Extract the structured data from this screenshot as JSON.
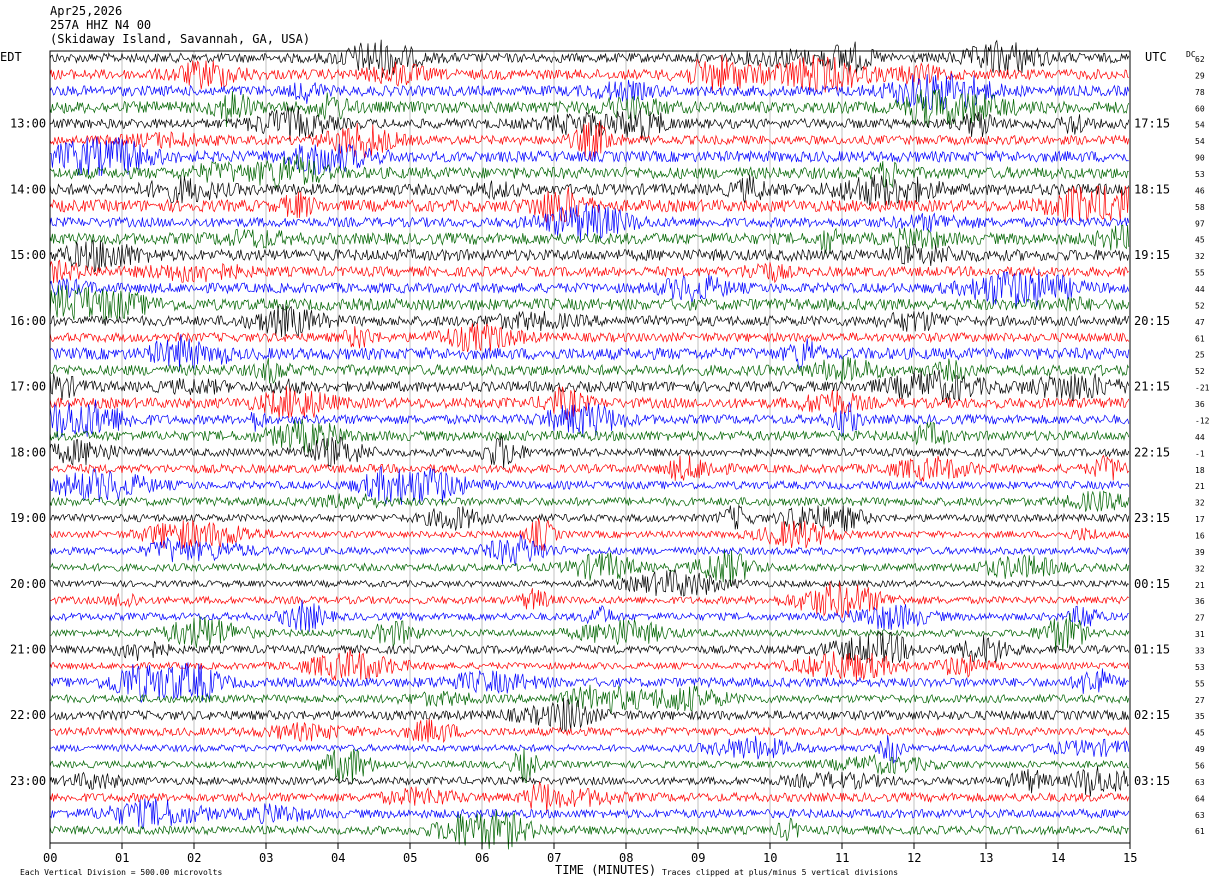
{
  "header": {
    "date": "Apr25,2026",
    "station": "257A HHZ N4 00",
    "location": "(Skidaway Island, Savannah, GA, USA)"
  },
  "left_timezone": "EDT",
  "right_timezone": "UTC",
  "dc_label": "DC",
  "footer": {
    "scale_note": "Each Vertical Division =  500.00 microvolts",
    "clip_note": "Traces clipped at plus/minus 5 vertical divisions"
  },
  "colors": [
    "#000000",
    "#ff0000",
    "#0000ff",
    "#006400"
  ],
  "chart_data": {
    "type": "line",
    "title": "",
    "xlabel": "TIME (MINUTES)",
    "x_ticks": [
      "00",
      "01",
      "02",
      "03",
      "04",
      "05",
      "06",
      "07",
      "08",
      "09",
      "10",
      "11",
      "12",
      "13",
      "14",
      "15"
    ],
    "xlim": [
      0,
      15
    ],
    "rows_per_hour": 4,
    "row_minutes": 15,
    "left_hour_labels": [
      "13:00",
      "14:00",
      "15:00",
      "16:00",
      "17:00",
      "18:00",
      "19:00",
      "20:00",
      "21:00",
      "22:00",
      "23:00"
    ],
    "right_hour_labels": [
      "17:15",
      "18:15",
      "19:15",
      "20:15",
      "21:15",
      "22:15",
      "23:15",
      "00:15",
      "01:15",
      "02:15",
      "03:15"
    ],
    "dc_offsets": [
      "62",
      "29",
      "78",
      "60",
      "54",
      "54",
      "90",
      "53",
      "46",
      "58",
      "97",
      "45",
      "32",
      "55",
      "44",
      "52",
      "47",
      "61",
      "25",
      "52",
      "-21",
      "36",
      "-12",
      "44",
      "-1",
      "18",
      "21",
      "32",
      "17",
      "16",
      "39",
      "32",
      "21",
      "36",
      "27",
      "31",
      "33",
      "53",
      "55",
      "27",
      "35",
      "45",
      "49",
      "56",
      "63",
      "64",
      "63",
      "61"
    ],
    "series_colors_cycle": [
      "black",
      "red",
      "blue",
      "green"
    ],
    "grid": true
  }
}
